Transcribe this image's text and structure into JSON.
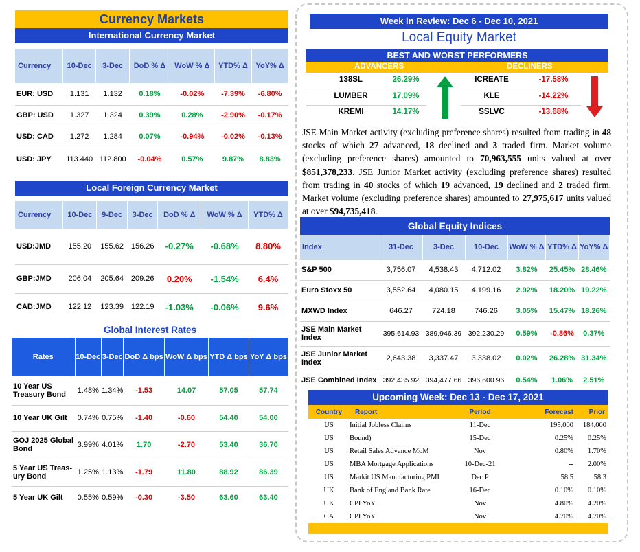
{
  "currency_markets": {
    "title": "Currency Markets",
    "intl": {
      "title": "International Currency Market",
      "headers": [
        "Currency",
        "10-Dec",
        "3-Dec",
        "DoD % Δ",
        "WoW % Δ",
        "YTD% Δ",
        "YoY% Δ"
      ],
      "rows": [
        {
          "name": "EUR: USD",
          "c1": "1.131",
          "c2": "1.132",
          "dod": "0.18%",
          "wow": "-0.02%",
          "ytd": "-7.39%",
          "yoy": "-6.80%"
        },
        {
          "name": "GBP: USD",
          "c1": "1.327",
          "c2": "1.324",
          "dod": "0.39%",
          "wow": "0.28%",
          "ytd": "-2.90%",
          "yoy": "-0.17%"
        },
        {
          "name": "USD: CAD",
          "c1": "1.272",
          "c2": "1.284",
          "dod": "0.07%",
          "wow": "-0.94%",
          "ytd": "-0.02%",
          "yoy": "-0.13%"
        },
        {
          "name": "USD: JPY",
          "c1": "113.440",
          "c2": "112.800",
          "dod": "-0.04%",
          "wow": "0.57%",
          "ytd": "9.87%",
          "yoy": "8.83%"
        }
      ]
    },
    "local": {
      "title": "Local Foreign Currency Market",
      "headers": [
        "Currency",
        "10-Dec",
        "9-Dec",
        "3-Dec",
        "DoD % Δ",
        "WoW % Δ",
        "YTD% Δ"
      ],
      "rows": [
        {
          "name": "USD:JMD",
          "c1": "155.20",
          "c2": "155.62",
          "c3": "156.26",
          "dod": "-0.27%",
          "wow": "-0.68%",
          "ytd": "8.80%"
        },
        {
          "name": "GBP:JMD",
          "c1": "206.04",
          "c2": "205.64",
          "c3": "209.26",
          "dod": "0.20%",
          "wow": "-1.54%",
          "ytd": "6.4%"
        },
        {
          "name": "CAD:JMD",
          "c1": "122.12",
          "c2": "123.39",
          "c3": "122.19",
          "dod": "-1.03%",
          "wow": "-0.06%",
          "ytd": "9.6%"
        }
      ]
    },
    "rates": {
      "title": "Global Interest Rates",
      "headers": [
        "Rates",
        "10-Dec",
        "3-Dec",
        "DoD Δ bps",
        "WoW Δ bps",
        "YTD Δ bps",
        "YoY Δ bps"
      ],
      "rows": [
        {
          "name": "10 Year US Treasury Bond",
          "c1": "1.48%",
          "c2": "1.34%",
          "dod": "-1.53",
          "wow": "14.07",
          "ytd": "57.05",
          "yoy": "57.74"
        },
        {
          "name": "10 Year UK Gilt",
          "c1": "0.74%",
          "c2": "0.75%",
          "dod": "-1.40",
          "wow": "-0.60",
          "ytd": "54.40",
          "yoy": "54.00"
        },
        {
          "name": "GOJ 2025 Global Bond",
          "c1": "3.99%",
          "c2": "4.01%",
          "dod": "1.70",
          "wow": "-2.70",
          "ytd": "53.40",
          "yoy": "36.70"
        },
        {
          "name": "5 Year US Treas-ury Bond",
          "c1": "1.25%",
          "c2": "1.13%",
          "dod": "-1.79",
          "wow": "11.80",
          "ytd": "88.92",
          "yoy": "86.39"
        },
        {
          "name": "5 Year UK Gilt",
          "c1": "0.55%",
          "c2": "0.59%",
          "dod": "-0.30",
          "wow": "-3.50",
          "ytd": "63.60",
          "yoy": "63.40"
        }
      ]
    }
  },
  "equity": {
    "week_title": "Week in Review:  Dec 6 - Dec 10, 2021",
    "local_title": "Local Equity Market",
    "bw_title": "BEST AND WORST PERFORMERS",
    "adv_label": "ADVANCERS",
    "dec_label": "DECLINERS",
    "advancers": [
      {
        "name": "138SL",
        "val": "26.29%"
      },
      {
        "name": "LUMBER",
        "val": "17.09%"
      },
      {
        "name": "KREMI",
        "val": "14.17%"
      }
    ],
    "decliners": [
      {
        "name": "ICREATE",
        "val": "-17.58%"
      },
      {
        "name": "KLE",
        "val": "-14.22%"
      },
      {
        "name": "SSLVC",
        "val": "-13.68%"
      }
    ],
    "para": {
      "p1": "JSE Main Market activity (excluding preference shares) resulted from trading in ",
      "n1": "48",
      "p2": " stocks of which ",
      "n2": "27",
      "p3": " advanced, ",
      "n3": "18",
      "p4": " declined and ",
      "n4": "3",
      "p5": " traded firm. Market volume (excluding preference shares) amounted to ",
      "n5": "70,963,555",
      "p6": " units valued at over ",
      "n6": "$851,378,233",
      "p7": ". JSE Junior Market activity (excluding preference shares) resulted from trading in ",
      "n7": "40",
      "p8": " stocks of which ",
      "n8": "19",
      "p9": " advanced, ",
      "n9": "19",
      "p10": " declined and ",
      "n10": "2",
      "p11": " traded firm. Market volume (excluding preference shares) amounted to ",
      "n11": "27,975,617",
      "p12": " units valued at over ",
      "n12": "$94,735,418",
      "p13": "."
    },
    "global": {
      "title": "Global Equity Indices",
      "headers": [
        "Index",
        "31-Dec",
        "3-Dec",
        "10-Dec",
        "WoW % Δ",
        "YTD% Δ",
        "YoY% Δ"
      ],
      "rows": [
        {
          "name": "S&P 500",
          "c1": "3,756.07",
          "c2": "4,538.43",
          "c3": "4,712.02",
          "wow": "3.82%",
          "ytd": "25.45%",
          "yoy": "28.46%"
        },
        {
          "name": "Euro Stoxx 50",
          "c1": "3,552.64",
          "c2": "4,080.15",
          "c3": "4,199.16",
          "wow": "2.92%",
          "ytd": "18.20%",
          "yoy": "19.22%"
        },
        {
          "name": "MXWD  Index",
          "c1": "646.27",
          "c2": "724.18",
          "c3": "746.26",
          "wow": "3.05%",
          "ytd": "15.47%",
          "yoy": "18.26%"
        },
        {
          "name": "JSE Main Market Index",
          "c1": "395,614.93",
          "c2": "389,946.39",
          "c3": "392,230.29",
          "wow": "0.59%",
          "ytd": "-0.86%",
          "yoy": "0.37%"
        },
        {
          "name": "JSE Junior Market Index",
          "c1": "2,643.38",
          "c2": "3,337.47",
          "c3": "3,338.02",
          "wow": "0.02%",
          "ytd": "26.28%",
          "yoy": "31.34%"
        },
        {
          "name": "JSE Combined Index",
          "c1": "392,435.92",
          "c2": "394,477.66",
          "c3": "396,600.96",
          "wow": "0.54%",
          "ytd": "1.06%",
          "yoy": "2.51%"
        }
      ]
    },
    "upcoming": {
      "title": "Upcoming Week:  Dec 13 - Dec 17, 2021",
      "headers": [
        "Country",
        "Report",
        "Period",
        "Forecast",
        "Prior"
      ],
      "rows": [
        {
          "country": "US",
          "report": "Initial Jobless Claims",
          "period": "11-Dec",
          "forecast": "195,000",
          "prior": "184,000"
        },
        {
          "country": "US",
          "report": "Bound)",
          "period": "15-Dec",
          "forecast": "0.25%",
          "prior": "0.25%"
        },
        {
          "country": "US",
          "report": "Retail Sales Advance MoM",
          "period": "Nov",
          "forecast": "0.80%",
          "prior": "1.70%"
        },
        {
          "country": "US",
          "report": "MBA Mortgage Applications",
          "period": "10-Dec-21",
          "forecast": "--",
          "prior": "2.00%"
        },
        {
          "country": "US",
          "report": "Markit US Manufacturing PMI",
          "period": "Dec P",
          "forecast": "58.5",
          "prior": "58.3"
        },
        {
          "country": "UK",
          "report": "Bank of England Bank Rate",
          "period": "16-Dec",
          "forecast": "0.10%",
          "prior": "0.10%"
        },
        {
          "country": "UK",
          "report": "CPI YoY",
          "period": "Nov",
          "forecast": "4.80%",
          "prior": "4.20%"
        },
        {
          "country": "CA",
          "report": "CPI YoY",
          "period": "Nov",
          "forecast": "4.70%",
          "prior": "4.70%"
        }
      ]
    }
  }
}
